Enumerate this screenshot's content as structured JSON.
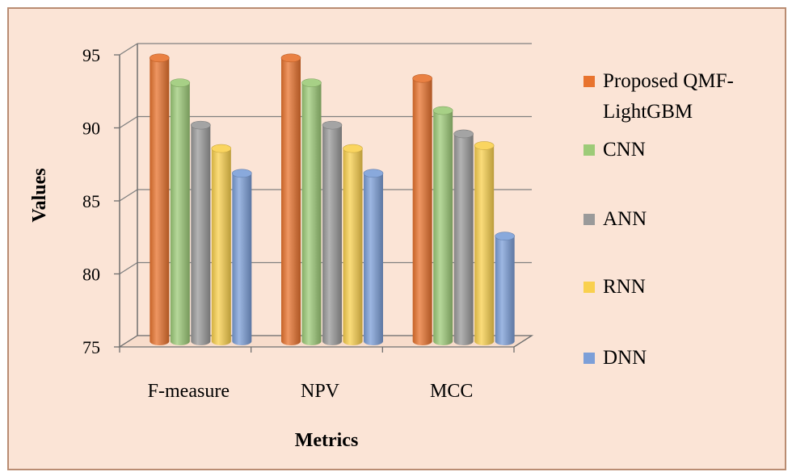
{
  "chart_data": {
    "type": "bar",
    "style": "3d-cylinder",
    "title": "",
    "xlabel": "Metrics",
    "ylabel": "Values",
    "ylim": [
      75,
      95
    ],
    "yticks": [
      75,
      80,
      85,
      90,
      95
    ],
    "categories": [
      "F-measure",
      "NPV",
      "MCC"
    ],
    "series": [
      {
        "name": "Proposed QMF-LightGBM",
        "legend_lines": [
          "Proposed QMF-",
          "LightGBM"
        ],
        "color": "#E8732E",
        "values": [
          94.4,
          94.4,
          93.0
        ]
      },
      {
        "name": "CNN",
        "legend_lines": [
          "CNN"
        ],
        "color": "#9DCB78",
        "values": [
          92.7,
          92.7,
          90.8
        ]
      },
      {
        "name": "ANN",
        "legend_lines": [
          "ANN"
        ],
        "color": "#9A9A9A",
        "values": [
          89.8,
          89.8,
          89.2
        ]
      },
      {
        "name": "RNN",
        "legend_lines": [
          "RNN"
        ],
        "color": "#F9D04E",
        "values": [
          88.2,
          88.2,
          88.4
        ]
      },
      {
        "name": "DNN",
        "legend_lines": [
          "DNN"
        ],
        "color": "#7C9FD8",
        "values": [
          86.5,
          86.5,
          82.2
        ]
      }
    ],
    "gridlines": true,
    "legend_position": "right",
    "background_color": "#FBE4D6",
    "border_color": "#B98C72"
  }
}
